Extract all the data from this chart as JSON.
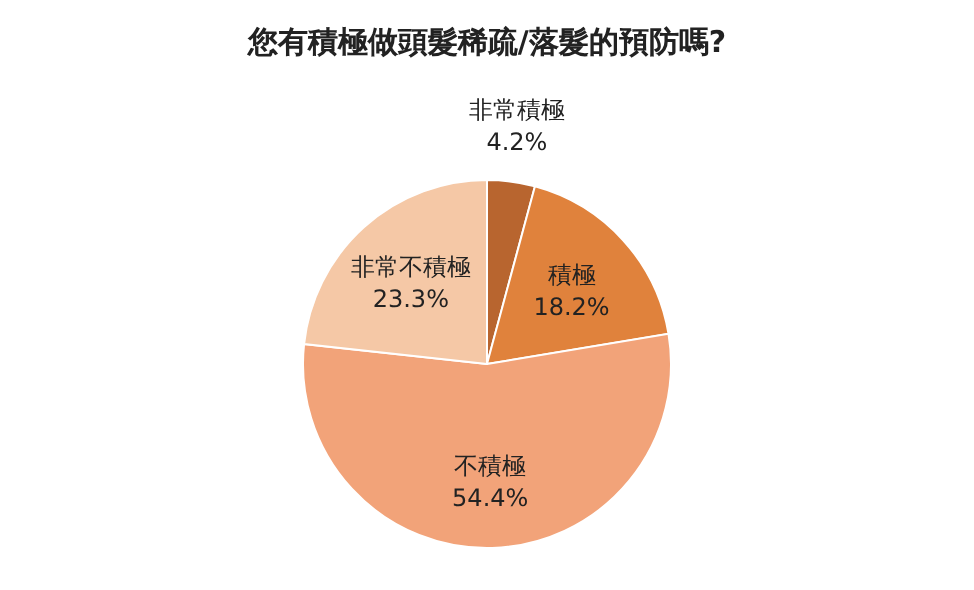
{
  "chart_data": {
    "type": "pie",
    "title": "您有積極做頭髮稀疏/落髮的預防嗎?",
    "categories": [
      "非常積極",
      "積極",
      "不積極",
      "非常不積極"
    ],
    "values": [
      4.2,
      18.2,
      54.4,
      23.3
    ],
    "value_labels": [
      "4.2%",
      "18.2%",
      "54.4%",
      "23.3%"
    ],
    "colors": [
      "#b8652f",
      "#e0823c",
      "#f2a379",
      "#f5c8a6"
    ]
  }
}
